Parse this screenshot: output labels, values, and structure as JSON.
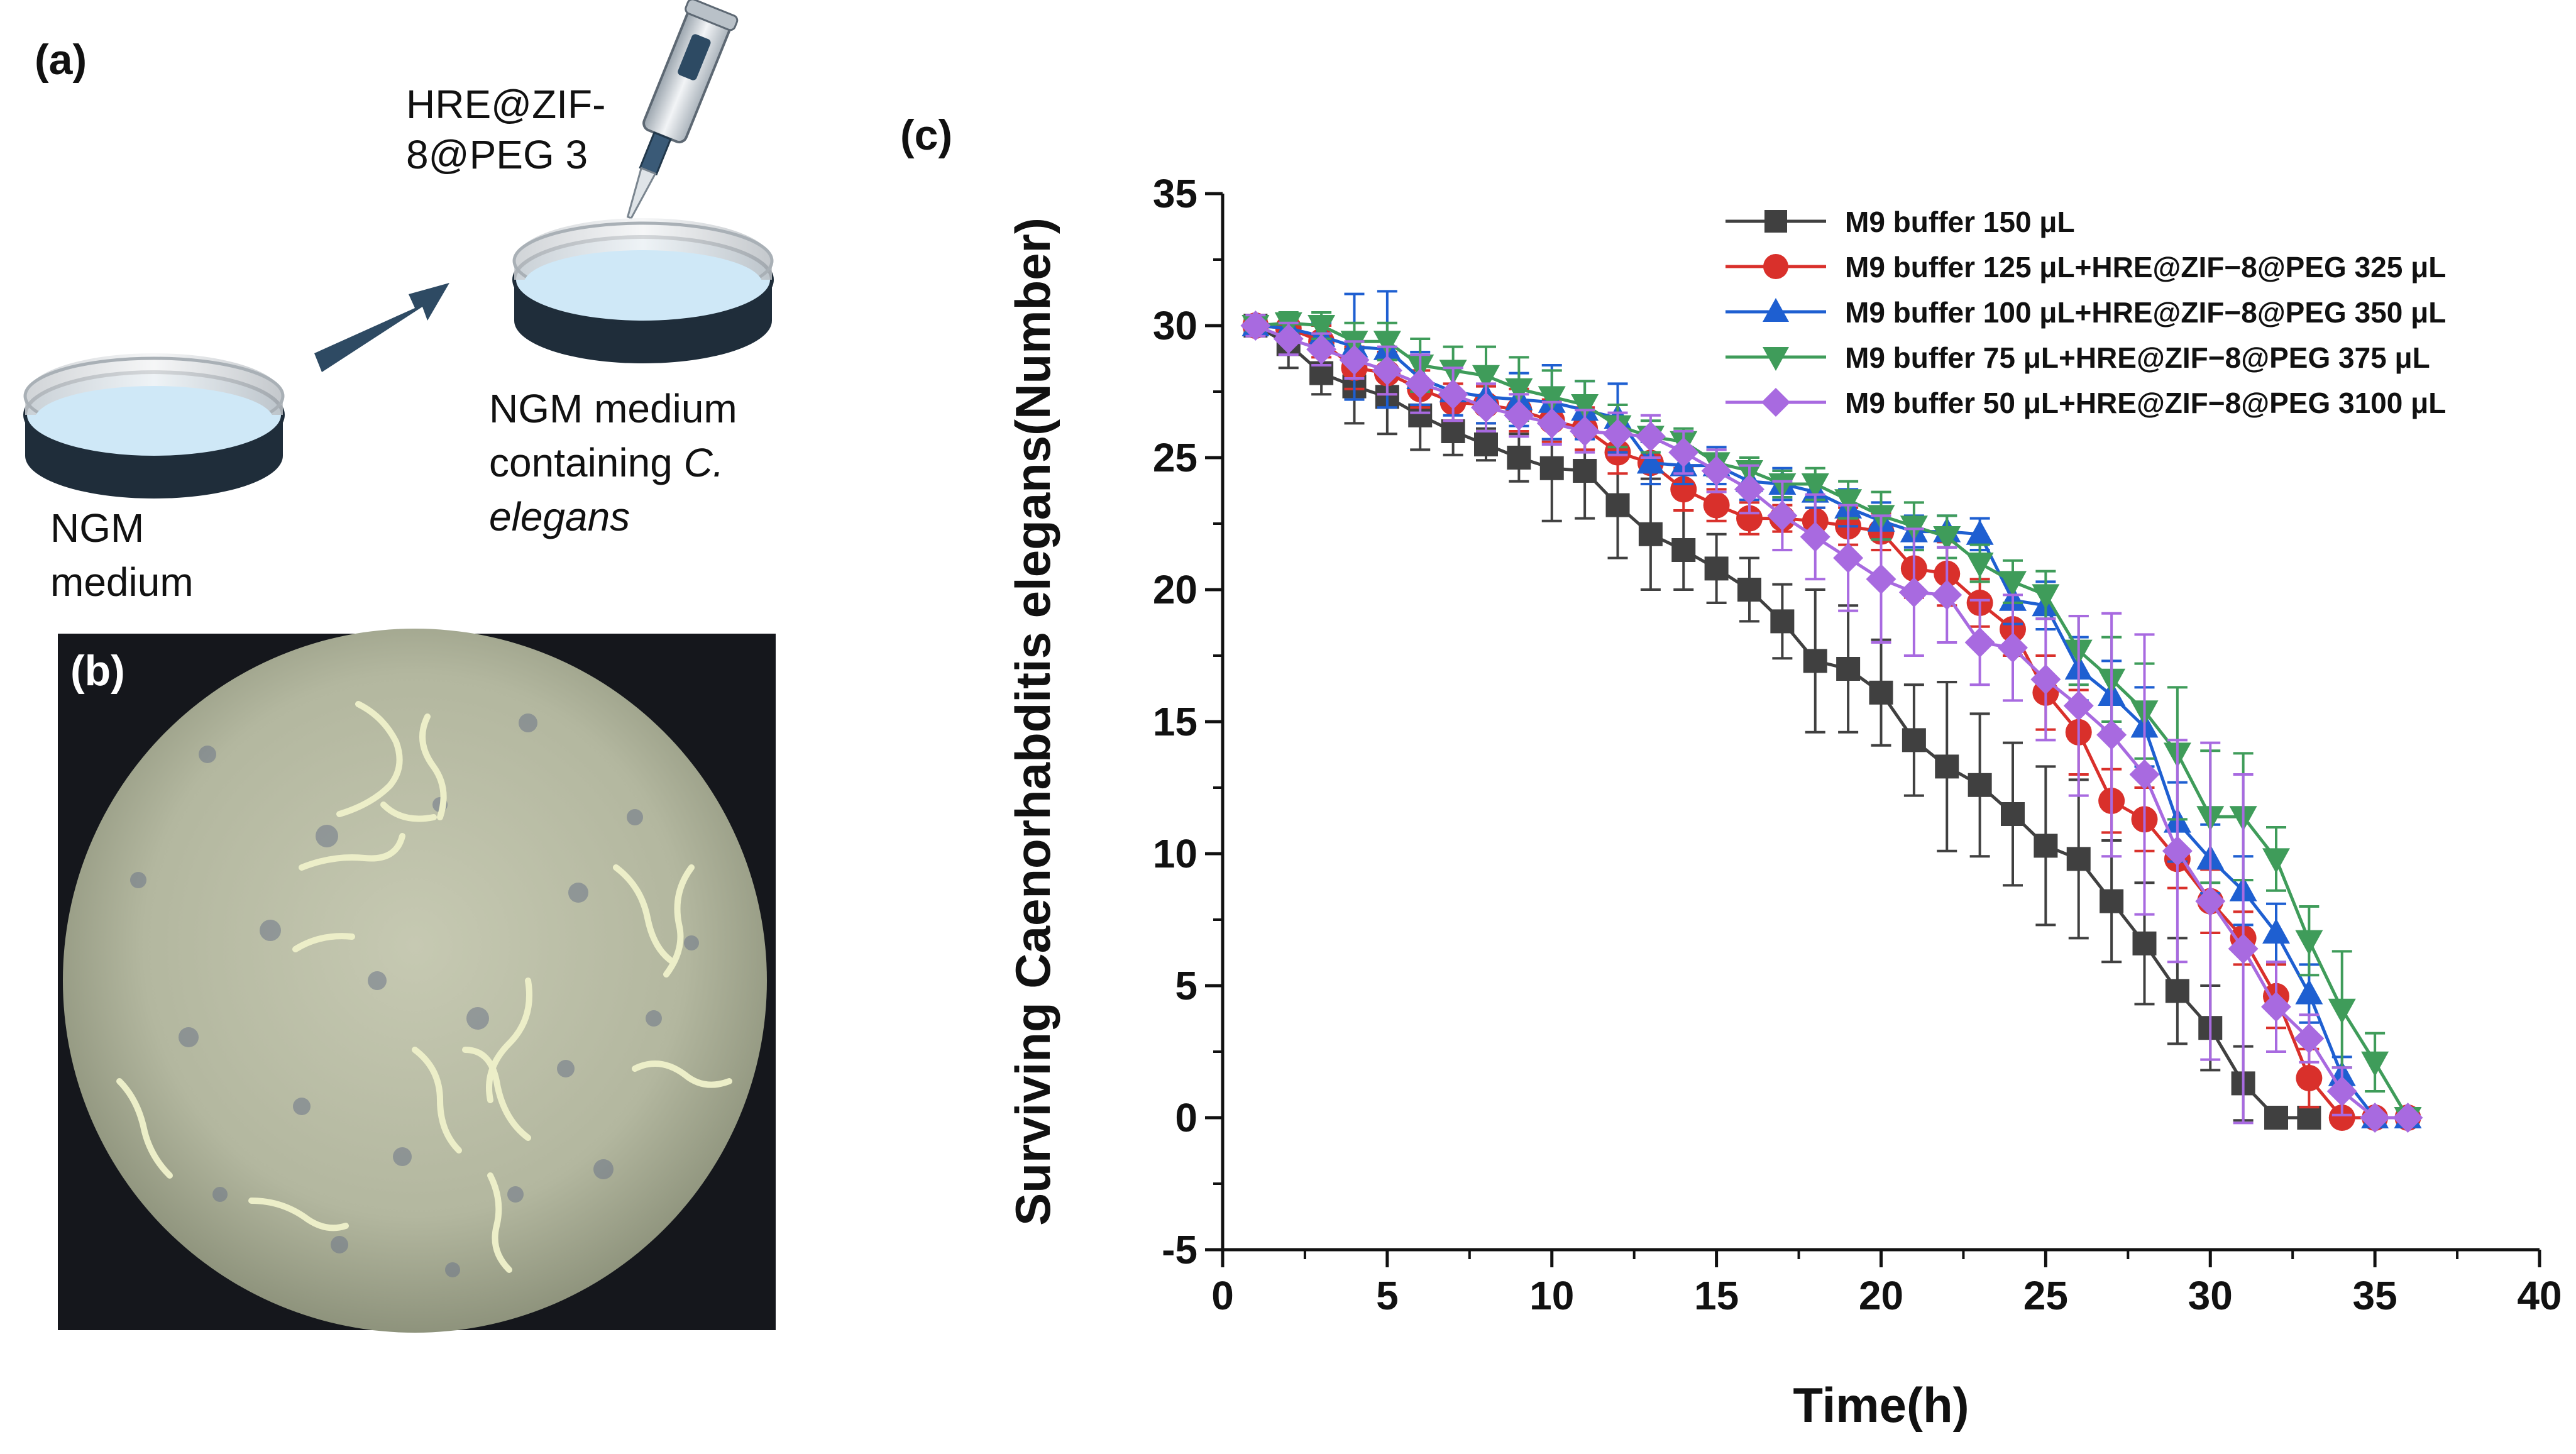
{
  "panel_a": {
    "label": "(a)",
    "pipette_text_line1": "HRE@ZIF-",
    "pipette_text_line2": "8@PEG 3",
    "dish1_line1": "NGM",
    "dish1_line2": "medium",
    "dish2_line1": "NGM medium",
    "dish2_line2_plain": "containing ",
    "dish2_line2_italic": "C.",
    "dish2_line3_italic": "elegans",
    "colors": {
      "medium": "#cfe8f7",
      "dish_rim": "#1f2d3a",
      "arrow": "#2e4a63"
    }
  },
  "panel_b": {
    "label": "(b)",
    "colors": {
      "background": "#15171c",
      "field": "#b9bca4"
    }
  },
  "chart_data": {
    "panel_label": "(c)",
    "type": "line",
    "title": "",
    "xlabel": "Time(h)",
    "ylabel": "Surviving Caenorhabditis elegans(Number)",
    "xlim": [
      0,
      40
    ],
    "ylim": [
      -5,
      35
    ],
    "xticks": [
      0,
      5,
      10,
      15,
      20,
      25,
      30,
      35,
      40
    ],
    "yticks": [
      -5,
      0,
      5,
      10,
      15,
      20,
      25,
      30,
      35
    ],
    "grid": false,
    "legend_position": "top-right",
    "series": [
      {
        "name": "M9 buffer 150 μL",
        "color": "#404040",
        "marker": "square",
        "x": [
          1,
          2,
          3,
          4,
          5,
          6,
          7,
          8,
          9,
          10,
          11,
          12,
          13,
          14,
          15,
          16,
          17,
          18,
          19,
          20,
          21,
          22,
          23,
          24,
          25,
          26,
          27,
          28,
          29,
          30,
          31,
          32,
          33
        ],
        "y": [
          30,
          29.3,
          28.2,
          27.7,
          27.3,
          26.6,
          26,
          25.5,
          25,
          24.6,
          24.5,
          23.2,
          22.1,
          21.5,
          20.8,
          20,
          18.8,
          17.3,
          17,
          16.1,
          14.3,
          13.3,
          12.6,
          11.5,
          10.3,
          9.8,
          8.2,
          6.6,
          4.8,
          3.4,
          1.3,
          0,
          0
        ],
        "err": [
          0.3,
          0.9,
          0.8,
          1.4,
          1.4,
          1.3,
          0.9,
          0.6,
          0.9,
          2.0,
          1.8,
          2.0,
          2.1,
          1.5,
          1.3,
          1.2,
          1.4,
          2.7,
          2.4,
          2.0,
          2.1,
          3.2,
          2.7,
          2.7,
          3.0,
          3.0,
          2.3,
          2.3,
          2.0,
          1.6,
          1.4,
          0,
          0
        ]
      },
      {
        "name": "M9 buffer 125 μL+HRE@ZIF−8@PEG 325 μL",
        "color": "#d9302b",
        "marker": "circle",
        "x": [
          1,
          2,
          3,
          4,
          5,
          6,
          7,
          8,
          9,
          10,
          11,
          12,
          13,
          14,
          15,
          16,
          17,
          18,
          19,
          20,
          21,
          22,
          23,
          24,
          25,
          26,
          27,
          28,
          29,
          30,
          31,
          32,
          33,
          34,
          35,
          36
        ],
        "y": [
          30,
          29.9,
          29.4,
          28.4,
          28.2,
          27.6,
          27.1,
          27,
          26.8,
          26.4,
          26.1,
          25.2,
          24.8,
          23.8,
          23.2,
          22.7,
          22.7,
          22.6,
          22.4,
          22.2,
          20.8,
          20.6,
          19.5,
          18.5,
          16.1,
          14.6,
          12,
          11.3,
          9.8,
          8.2,
          6.8,
          4.6,
          1.5,
          0,
          0,
          0
        ],
        "err": [
          0.3,
          0.5,
          0.6,
          0.8,
          0.8,
          0.7,
          0.7,
          0.7,
          0.8,
          0.8,
          0.8,
          0.8,
          0.8,
          0.8,
          0.6,
          0.6,
          0.5,
          0.5,
          0.7,
          0.7,
          1.1,
          1.2,
          0.9,
          1.0,
          1.4,
          1.6,
          1.2,
          1.2,
          1.1,
          1.2,
          1.0,
          1.2,
          1.1,
          0,
          0,
          0
        ]
      },
      {
        "name": "M9 buffer 100 μL+HRE@ZIF−8@PEG 350 μL",
        "color": "#1e5fd1",
        "marker": "triangle-up",
        "x": [
          1,
          2,
          3,
          4,
          5,
          6,
          7,
          8,
          9,
          10,
          11,
          12,
          13,
          14,
          15,
          16,
          17,
          18,
          19,
          20,
          21,
          22,
          23,
          24,
          25,
          26,
          27,
          28,
          29,
          30,
          31,
          32,
          33,
          34,
          35,
          36
        ],
        "y": [
          30,
          29.9,
          29.6,
          29.2,
          29.1,
          28,
          27.5,
          27.3,
          27.2,
          27.1,
          26.8,
          26.5,
          24.8,
          24.7,
          24.7,
          24.1,
          24,
          23.7,
          23.1,
          22.6,
          22.2,
          22.2,
          22.1,
          19.6,
          19.4,
          17,
          16,
          14.8,
          11.2,
          9.8,
          8.6,
          7,
          4.7,
          1.6,
          0,
          0
        ],
        "err": [
          0.3,
          0.4,
          0.5,
          2.0,
          2.2,
          1.0,
          0.9,
          1.0,
          1.0,
          1.4,
          1.1,
          1.3,
          0.8,
          0.7,
          0.7,
          0.7,
          0.6,
          0.6,
          0.7,
          0.7,
          0.6,
          0.6,
          0.6,
          0.9,
          0.9,
          1.2,
          1.3,
          1.5,
          1.5,
          1.3,
          1.3,
          1.1,
          1.1,
          0.7,
          0,
          0
        ]
      },
      {
        "name": "M9 buffer 75 μL+HRE@ZIF−8@PEG 375 μL",
        "color": "#3f9c5a",
        "marker": "triangle-down",
        "x": [
          1,
          2,
          3,
          4,
          5,
          6,
          7,
          8,
          9,
          10,
          11,
          12,
          13,
          14,
          15,
          16,
          17,
          18,
          19,
          20,
          21,
          22,
          23,
          24,
          25,
          26,
          27,
          28,
          29,
          30,
          31,
          32,
          33,
          34,
          35,
          36
        ],
        "y": [
          30,
          30.1,
          30,
          29.4,
          29.4,
          28.5,
          28.3,
          28.1,
          27.6,
          27.3,
          27,
          26.2,
          25.8,
          25.6,
          24.8,
          24.5,
          24,
          24,
          23.4,
          22.8,
          22.4,
          22,
          21,
          20.3,
          19.8,
          17.7,
          16.6,
          15.4,
          13.8,
          11.4,
          11.4,
          9.8,
          6.7,
          4.1,
          2.1,
          0
        ],
        "err": [
          0.2,
          0.4,
          0.5,
          0.7,
          0.7,
          1.0,
          0.9,
          1.1,
          1.2,
          1.0,
          0.9,
          0.8,
          0.6,
          0.5,
          0.5,
          0.5,
          0.5,
          0.6,
          0.7,
          0.9,
          0.9,
          0.8,
          0.7,
          0.8,
          0.9,
          1.3,
          1.6,
          1.8,
          2.5,
          2.5,
          2.4,
          1.2,
          1.3,
          2.2,
          1.1,
          0
        ]
      },
      {
        "name": "M9 buffer 50 μL+HRE@ZIF−8@PEG 3100 μL",
        "color": "#a86ae0",
        "marker": "diamond",
        "x": [
          1,
          2,
          3,
          4,
          5,
          6,
          7,
          8,
          9,
          10,
          11,
          12,
          13,
          14,
          15,
          16,
          17,
          18,
          19,
          20,
          21,
          22,
          23,
          24,
          25,
          26,
          27,
          28,
          29,
          30,
          31,
          32,
          33,
          34,
          35,
          36
        ],
        "y": [
          30,
          29.5,
          29.1,
          28.7,
          28.3,
          27.8,
          27.4,
          26.9,
          26.6,
          26.3,
          26,
          25.9,
          25.8,
          25.2,
          24.5,
          23.8,
          22.8,
          22,
          21.2,
          20.4,
          19.9,
          19.8,
          18,
          17.8,
          16.6,
          15.6,
          14.5,
          13,
          10.1,
          8.2,
          6.4,
          4.2,
          3,
          1,
          0,
          0
        ],
        "err": [
          0.4,
          0.6,
          0.6,
          0.7,
          0.9,
          1.1,
          1.0,
          0.9,
          0.8,
          0.8,
          0.8,
          0.8,
          0.8,
          0.8,
          0.8,
          0.9,
          1.3,
          1.6,
          2.0,
          2.4,
          2.4,
          1.8,
          1.6,
          2.0,
          2.3,
          3.4,
          4.6,
          5.3,
          4.2,
          6.0,
          6.6,
          1.7,
          0.9,
          0.9,
          0,
          0
        ]
      }
    ]
  }
}
